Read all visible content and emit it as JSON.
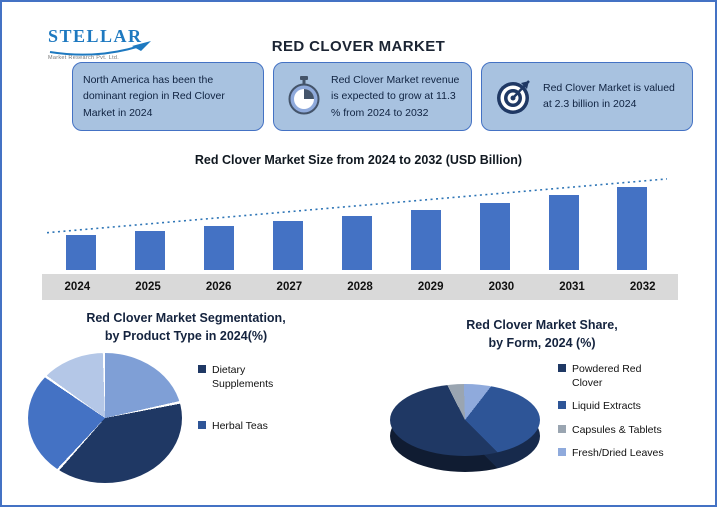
{
  "header": {
    "title": "RED CLOVER MARKET",
    "logo_name": "STELLAR",
    "logo_tagline": "Market Research Pvt. Ltd."
  },
  "info_boxes": [
    {
      "text": "North America has been the dominant region in Red Clover Market in 2024"
    },
    {
      "icon": "stopwatch-icon",
      "text": "Red Clover Market revenue is expected to grow at 11.3 % from 2024 to 2032"
    },
    {
      "icon": "target-icon",
      "text": "Red Clover Market is valued at 2.3 billion in 2024"
    }
  ],
  "colors": {
    "accent_blue": "#4472C4",
    "box_fill": "#A8C2E0",
    "dark_navy": "#1F3864",
    "axis_band": "#D9D9D9",
    "trend_line": "#2E75B6",
    "page_border": "#4472C4"
  },
  "chart_data": [
    {
      "type": "bar",
      "title": "Red Clover Market Size from 2024 to 2032 (USD Billion)",
      "categories": [
        "2024",
        "2025",
        "2026",
        "2027",
        "2028",
        "2029",
        "2030",
        "2031",
        "2032"
      ],
      "values": [
        2.3,
        2.56,
        2.85,
        3.17,
        3.53,
        3.93,
        4.37,
        4.87,
        5.42
      ],
      "ylabel": "USD Billion",
      "ylim": [
        0,
        6
      ],
      "bar_color": "#4472C4",
      "trendline": true,
      "trend_color": "#2E75B6",
      "legend_position": "none",
      "grid": false
    },
    {
      "type": "pie",
      "title": "Red Clover Market Segmentation,\nby Product Type in 2024(%)",
      "start_angle": 0,
      "gap_deg": 2,
      "slices": [
        {
          "label": "",
          "value": 22,
          "color": "#7F9FD6"
        },
        {
          "label": "Dietary Supplements",
          "value": 40,
          "color": "#1F3864"
        },
        {
          "label": "Herbal Teas",
          "value": 23,
          "color": "#4472C4"
        },
        {
          "label": "",
          "value": 15,
          "color": "#B4C7E7"
        }
      ],
      "legend": [
        {
          "label": "Dietary Supplements",
          "color": "#1F3864"
        },
        {
          "label": "Herbal Teas",
          "color": "#2F5597"
        }
      ],
      "legend_position": "right"
    },
    {
      "type": "pie",
      "title": "Red Clover Market Share,\nby Form, 2024 (%)",
      "style": "3d",
      "start_angle": 135,
      "gap_deg": 0,
      "slices": [
        {
          "label": "Powdered Red Clover",
          "value": 55,
          "color": "#1F3864"
        },
        {
          "label": "Capsules & Tablets",
          "value": 7,
          "color": "#9AA5B1"
        },
        {
          "label": "Fresh/Dried Leaves",
          "value": 11,
          "color": "#8FAADC"
        },
        {
          "label": "Liquid Extracts",
          "value": 27,
          "color": "#2E5597"
        }
      ],
      "legend": [
        {
          "label": "Powdered Red Clover",
          "color": "#1F3864"
        },
        {
          "label": "Liquid Extracts",
          "color": "#2E5597"
        },
        {
          "label": "Capsules & Tablets",
          "color": "#9AA5B1"
        },
        {
          "label": "Fresh/Dried Leaves",
          "color": "#8FAADC"
        }
      ],
      "legend_position": "right"
    }
  ]
}
